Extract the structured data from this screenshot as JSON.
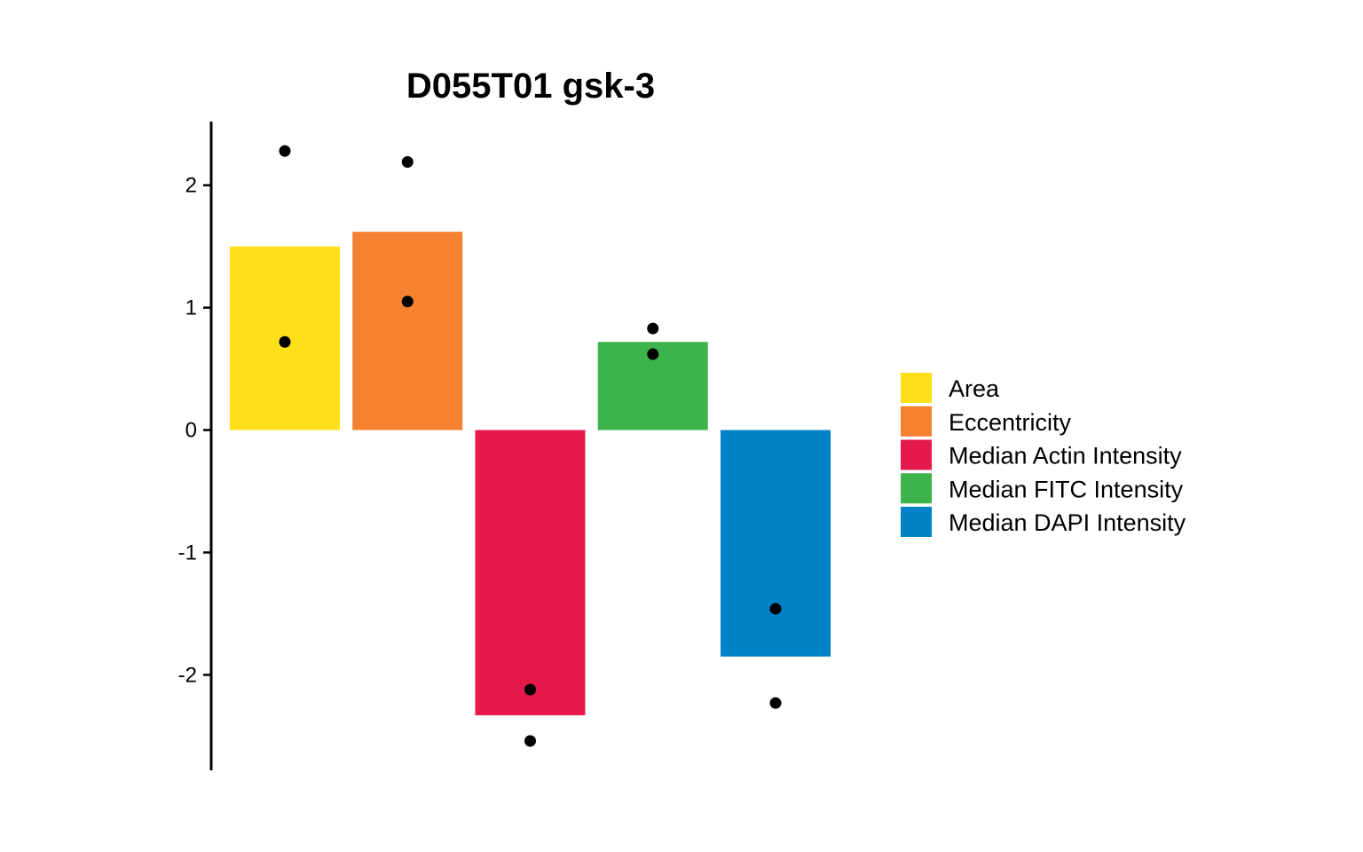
{
  "chart_data": {
    "type": "bar",
    "title": "D055T01 gsk-3",
    "xlabel": "",
    "ylabel": "",
    "ylim": [
      -2.78,
      2.52
    ],
    "yticks": [
      2,
      1,
      0,
      -1,
      -2
    ],
    "ytick_labels": [
      "2",
      "1",
      "0",
      "-1",
      "-2"
    ],
    "categories": [
      "Area",
      "Eccentricity",
      "Median Actin Intensity",
      "Median FITC Intensity",
      "Median DAPI Intensity"
    ],
    "values": [
      1.5,
      1.62,
      -2.33,
      0.72,
      -1.85
    ],
    "colors": [
      "#FDE01A",
      "#F58231",
      "#E6194B",
      "#3CB44B",
      "#0082C8"
    ],
    "points": [
      [
        2.28,
        0.72
      ],
      [
        2.19,
        1.05
      ],
      [
        -2.12,
        -2.54
      ],
      [
        0.83,
        0.62
      ],
      [
        -1.46,
        -2.23
      ]
    ],
    "legend_position": "right",
    "grid": false
  }
}
